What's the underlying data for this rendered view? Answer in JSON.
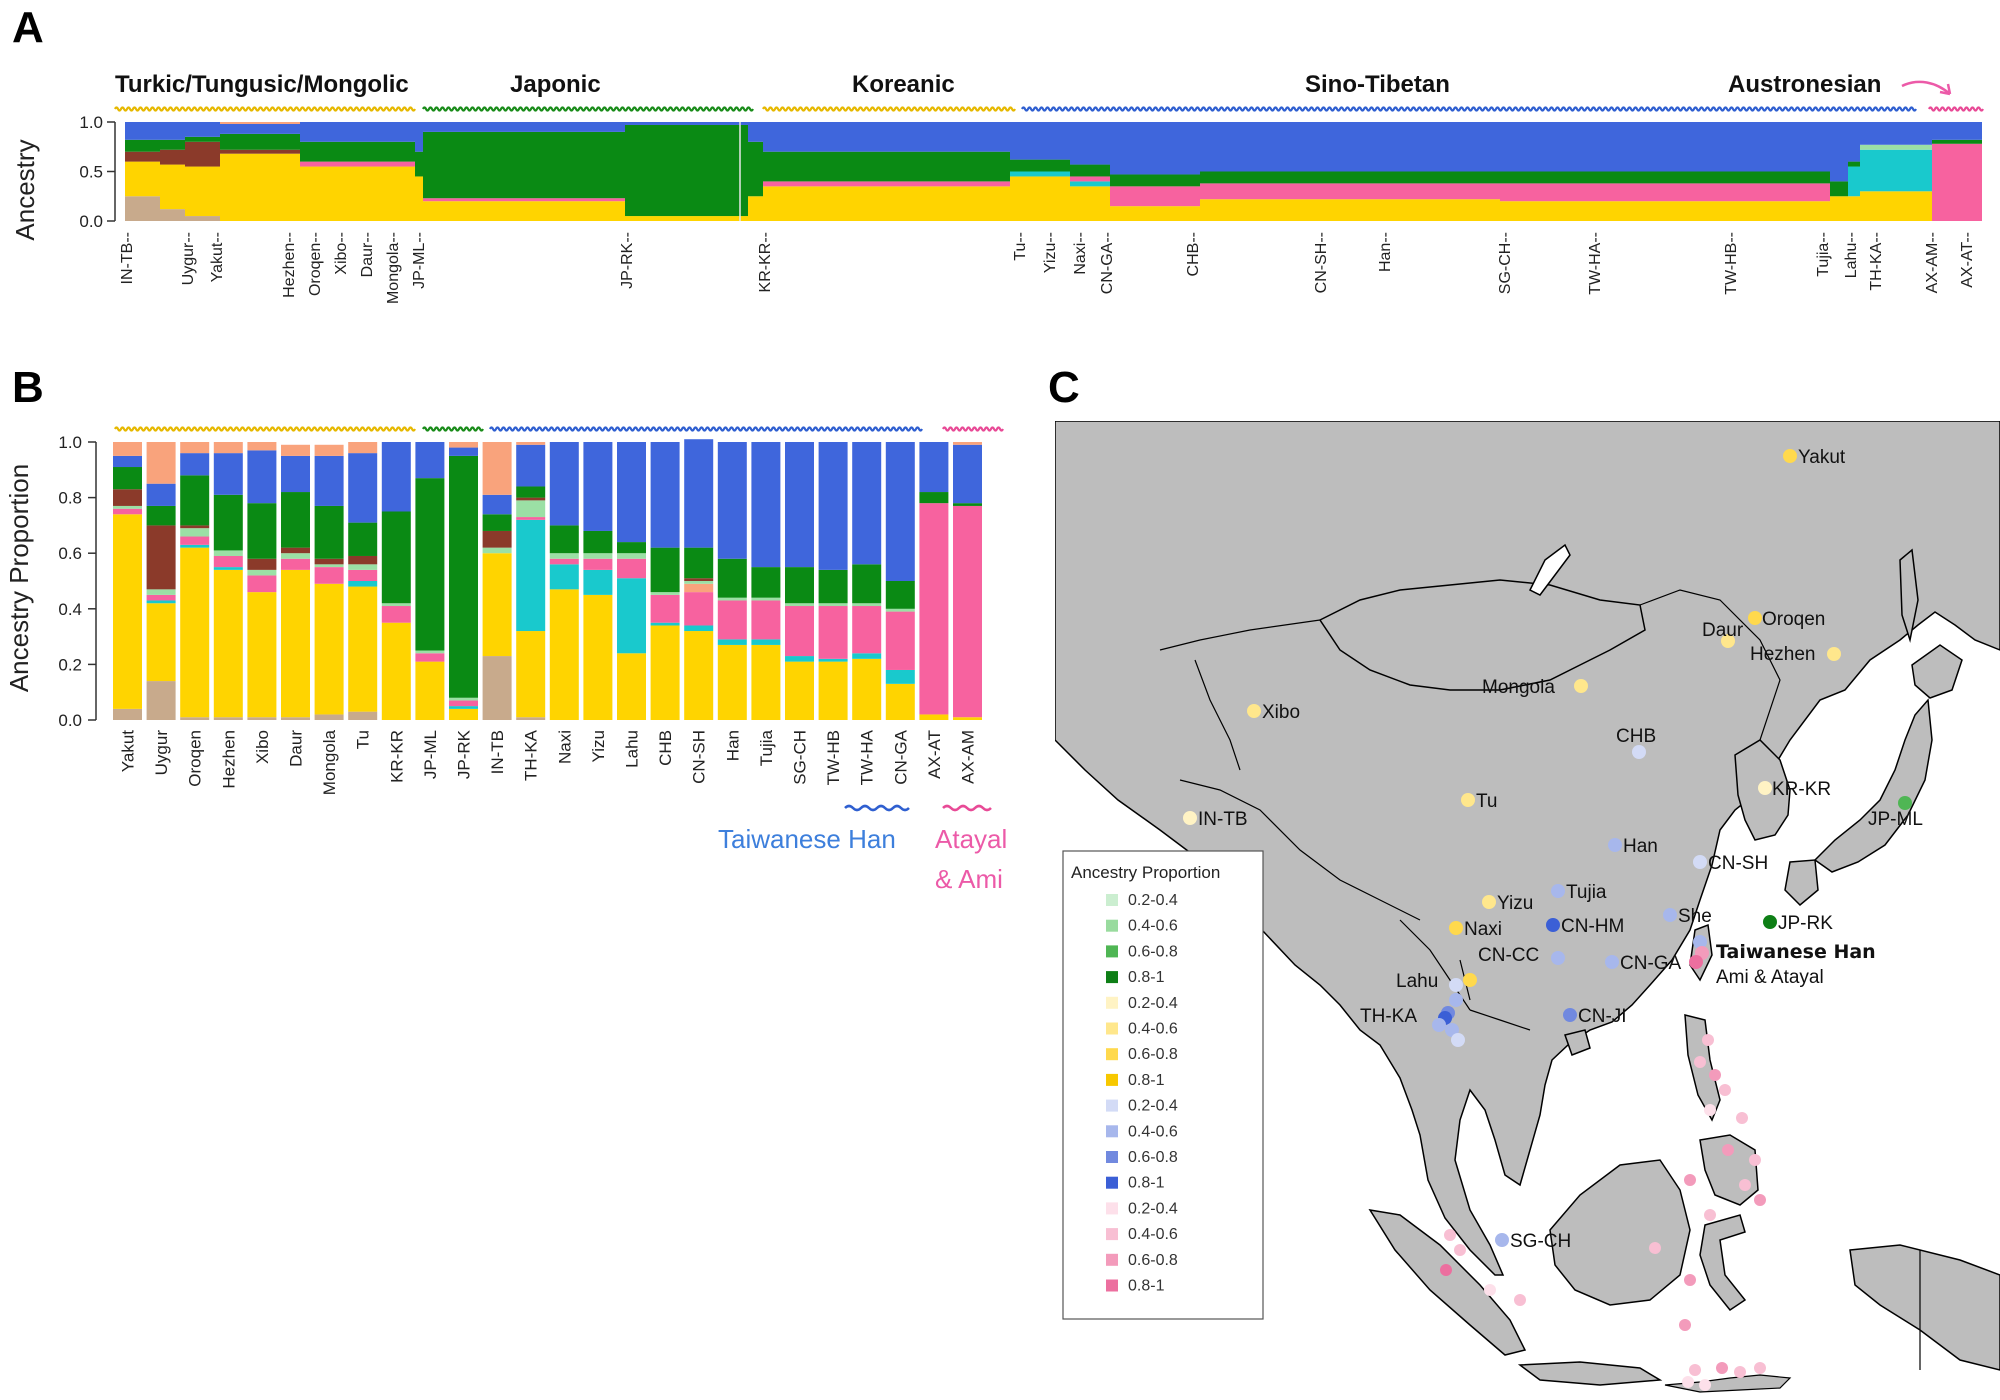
{
  "colors": {
    "tan": "#c8aa8c",
    "brown": "#8b3a2a",
    "gold": "#ffd400",
    "green": "#0a8a14",
    "salmon": "#f9a37c",
    "pink": "#f7629f",
    "cyan": "#19c9cd",
    "lightgreen": "#9be0a5",
    "blue": "#3f66dc",
    "wt_gold": "#e6b800",
    "wt_green": "#1a8c1a",
    "wt_blue": "#2f5fd0",
    "wt_pink": "#e84a96",
    "map_land": "#bdbdbd"
  },
  "panelA": {
    "letter": "A",
    "ylabel": "Ancestry",
    "yticks": [
      "0.0",
      "0.5",
      "1.0"
    ],
    "families": [
      {
        "label": "Turkic/Tungusic/Mongolic",
        "color_key": "wt_gold"
      },
      {
        "label": "Japonic",
        "color_key": "wt_green"
      },
      {
        "label": "Koreanic",
        "color_key": "wt_gold"
      },
      {
        "label": "Sino-Tibetan",
        "color_key": "wt_blue"
      },
      {
        "label": "Austronesian",
        "color_key": "wt_pink"
      }
    ],
    "pop_labels": [
      "IN-TB",
      "Uygur",
      "Yakut",
      "Hezhen",
      "Oroqen",
      "Xibo",
      "Daur",
      "Mongola",
      "JP-ML",
      "JP-RK",
      "KR-KR",
      "Tu",
      "Yizu",
      "Naxi",
      "CN-GA",
      "CHB",
      "CN-SH",
      "Han",
      "SG-CH",
      "TW-HA",
      "TW-HB",
      "Tujia",
      "Lahu",
      "TH-KA",
      "AX-AM",
      "AX-AT"
    ]
  },
  "panelB": {
    "letter": "B",
    "ylabel": "Ancestry Proportion",
    "yticks": [
      "0.0",
      "0.2",
      "0.4",
      "0.6",
      "0.8",
      "1.0"
    ],
    "annot_han": "Taiwanese Han",
    "annot_atayal_line1": "Atayal",
    "annot_atayal_line2": "& Ami"
  },
  "chart_data": {
    "type": "bar",
    "stacked": true,
    "ylim": [
      0,
      1
    ],
    "ylabel": "Ancestry Proportion",
    "categories": [
      "Yakut",
      "Uygur",
      "Oroqen",
      "Hezhen",
      "Xibo",
      "Daur",
      "Mongola",
      "Tu",
      "KR-KR",
      "JP-ML",
      "JP-RK",
      "IN-TB",
      "TH-KA",
      "Naxi",
      "Yizu",
      "Lahu",
      "CHB",
      "CN-SH",
      "Han",
      "Tujia",
      "SG-CH",
      "TW-HB",
      "TW-HA",
      "CN-GA",
      "AX-AT",
      "AX-AM"
    ],
    "series": [
      {
        "color_key": "tan",
        "values": [
          0.04,
          0.14,
          0.01,
          0.01,
          0.01,
          0.01,
          0.02,
          0.03,
          0.0,
          0.0,
          0.0,
          0.23,
          0.01,
          0.0,
          0.0,
          0.0,
          0.0,
          0.0,
          0.0,
          0.0,
          0.0,
          0.0,
          0.0,
          0.0,
          0.0,
          0.0
        ]
      },
      {
        "color_key": "gold",
        "values": [
          0.7,
          0.28,
          0.61,
          0.53,
          0.45,
          0.53,
          0.47,
          0.45,
          0.35,
          0.21,
          0.04,
          0.37,
          0.31,
          0.47,
          0.45,
          0.24,
          0.34,
          0.32,
          0.27,
          0.27,
          0.21,
          0.21,
          0.22,
          0.13,
          0.02,
          0.01
        ]
      },
      {
        "color_key": "cyan",
        "values": [
          0.0,
          0.01,
          0.01,
          0.01,
          0.0,
          0.0,
          0.0,
          0.02,
          0.0,
          0.0,
          0.01,
          0.0,
          0.4,
          0.09,
          0.09,
          0.27,
          0.01,
          0.02,
          0.02,
          0.02,
          0.02,
          0.01,
          0.02,
          0.05,
          0.0,
          0.0
        ]
      },
      {
        "color_key": "pink",
        "values": [
          0.02,
          0.02,
          0.03,
          0.04,
          0.06,
          0.04,
          0.06,
          0.04,
          0.06,
          0.03,
          0.02,
          0.0,
          0.01,
          0.02,
          0.04,
          0.07,
          0.1,
          0.12,
          0.14,
          0.14,
          0.18,
          0.19,
          0.17,
          0.21,
          0.76,
          0.76
        ]
      },
      {
        "color_key": "salmon",
        "values": [
          0.0,
          0.0,
          0.0,
          0.0,
          0.0,
          0.0,
          0.0,
          0.0,
          0.0,
          0.0,
          0.0,
          0.0,
          0.0,
          0.0,
          0.0,
          0.0,
          0.0,
          0.03,
          0.0,
          0.0,
          0.0,
          0.0,
          0.0,
          0.0,
          0.0,
          0.0
        ]
      },
      {
        "color_key": "lightgreen",
        "values": [
          0.01,
          0.02,
          0.03,
          0.02,
          0.02,
          0.02,
          0.01,
          0.02,
          0.01,
          0.01,
          0.01,
          0.02,
          0.06,
          0.02,
          0.02,
          0.02,
          0.01,
          0.01,
          0.01,
          0.01,
          0.01,
          0.01,
          0.01,
          0.01,
          0.0,
          0.0
        ]
      },
      {
        "color_key": "brown",
        "values": [
          0.06,
          0.23,
          0.01,
          0.0,
          0.04,
          0.02,
          0.02,
          0.03,
          0.0,
          0.0,
          0.0,
          0.06,
          0.01,
          0.0,
          0.0,
          0.0,
          0.0,
          0.01,
          0.0,
          0.0,
          0.0,
          0.0,
          0.0,
          0.0,
          0.0,
          0.0
        ]
      },
      {
        "color_key": "green",
        "values": [
          0.08,
          0.07,
          0.18,
          0.2,
          0.2,
          0.2,
          0.19,
          0.12,
          0.33,
          0.62,
          0.87,
          0.06,
          0.04,
          0.1,
          0.08,
          0.04,
          0.16,
          0.11,
          0.14,
          0.11,
          0.13,
          0.12,
          0.14,
          0.1,
          0.04,
          0.01
        ]
      },
      {
        "color_key": "blue",
        "values": [
          0.04,
          0.08,
          0.08,
          0.15,
          0.19,
          0.13,
          0.18,
          0.25,
          0.25,
          0.13,
          0.03,
          0.07,
          0.15,
          0.3,
          0.32,
          0.36,
          0.38,
          0.39,
          0.42,
          0.45,
          0.45,
          0.46,
          0.44,
          0.5,
          0.18,
          0.21
        ]
      },
      {
        "color_key": "salmon",
        "values": [
          0.05,
          0.15,
          0.04,
          0.04,
          0.03,
          0.04,
          0.04,
          0.04,
          0.0,
          0.0,
          0.02,
          0.19,
          0.01,
          0.0,
          0.0,
          0.0,
          0.0,
          0.0,
          0.0,
          0.0,
          0.0,
          0.0,
          0.0,
          0.0,
          0.0,
          0.01
        ]
      }
    ]
  },
  "panelC": {
    "letter": "C",
    "legend_title": "Ancestry Proportion",
    "legend_items": [
      {
        "label": "0.2-0.4",
        "color": "#cbeed0"
      },
      {
        "label": "0.4-0.6",
        "color": "#99db9e"
      },
      {
        "label": "0.6-0.8",
        "color": "#4fb654"
      },
      {
        "label": "0.8-1",
        "color": "#0e7f16"
      },
      {
        "label": "0.2-0.4",
        "color": "#fff3c4"
      },
      {
        "label": "0.4-0.6",
        "color": "#ffe78c"
      },
      {
        "label": "0.6-0.8",
        "color": "#ffd94d"
      },
      {
        "label": "0.8-1",
        "color": "#f7c800"
      },
      {
        "label": "0.2-0.4",
        "color": "#d3dbf6"
      },
      {
        "label": "0.4-0.6",
        "color": "#a7b7ec"
      },
      {
        "label": "0.6-0.8",
        "color": "#7189df"
      },
      {
        "label": "0.8-1",
        "color": "#3b5fd6"
      },
      {
        "label": "0.2-0.4",
        "color": "#fde0ea"
      },
      {
        "label": "0.4-0.6",
        "color": "#f8bfd3"
      },
      {
        "label": "0.6-0.8",
        "color": "#f39bbb"
      },
      {
        "label": "0.8-1",
        "color": "#ec6f9f"
      }
    ],
    "places": [
      "Yakut",
      "Oroqen",
      "Daur",
      "Hezhen",
      "Mongola",
      "Xibo",
      "CHB",
      "KR-KR",
      "JP-ML",
      "IN-TB",
      "Tu",
      "Han",
      "CN-SH",
      "Tujia",
      "Yizu",
      "CN-HM",
      "She",
      "JP-RK",
      "Naxi",
      "CN-CC",
      "CN-GA",
      "Lahu",
      "TH-KA",
      "CN-JI",
      "SG-CH"
    ],
    "taiwan_han": "Taiwanese Han",
    "taiwan_ami": "Ami & Atayal"
  }
}
